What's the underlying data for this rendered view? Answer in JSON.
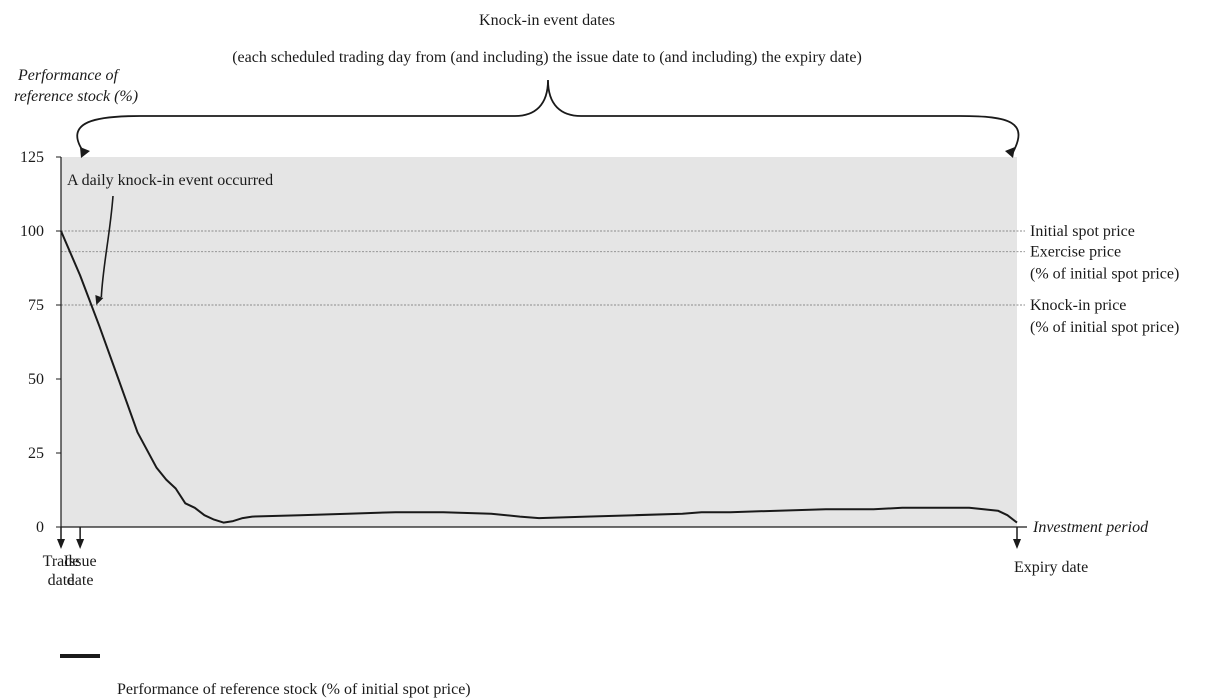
{
  "header": {
    "title": "Knock-in event dates",
    "subtitle": "(each scheduled trading day from (and including) the issue date to (and including) the expiry date)"
  },
  "chart_data": {
    "type": "line",
    "ylabel_line1": "Performance of",
    "ylabel_line2": "reference stock (%)",
    "xlabel": "Investment period",
    "ylim": [
      0,
      125
    ],
    "yticks": [
      "125",
      "100",
      "75",
      "50",
      "25",
      "0"
    ],
    "ytick_values": [
      125,
      100,
      75,
      50,
      25,
      0
    ],
    "series": [
      {
        "name": "Performance of reference stock (% of initial spot price)",
        "x": [
          0,
          2,
          4,
          6,
          8,
          10,
          11,
          12,
          13,
          14,
          15,
          16,
          17,
          18,
          19,
          20,
          25,
          30,
          35,
          40,
          45,
          48,
          50,
          55,
          60,
          65,
          67,
          70,
          75,
          80,
          85,
          88,
          90,
          95,
          98,
          99,
          100
        ],
        "values": [
          100,
          85,
          68,
          50,
          32,
          20,
          16,
          13,
          8,
          6.5,
          4,
          2.5,
          1.5,
          2,
          3,
          3.5,
          4,
          4.5,
          5,
          5,
          4.5,
          3.5,
          3,
          3.5,
          4,
          4.5,
          5,
          5,
          5.5,
          6,
          6,
          6.5,
          6.5,
          6.5,
          5.5,
          4,
          1.5
        ]
      }
    ],
    "reference_lines": [
      {
        "label_line1": "Initial spot price",
        "label_line2": "",
        "value": 100
      },
      {
        "label_line1": "Exercise price",
        "label_line2": "(% of initial spot price)",
        "value": 93
      },
      {
        "label_line1": "Knock-in price",
        "label_line2": "(% of initial spot price)",
        "value": 75
      }
    ],
    "annotation": {
      "text": "A daily knock-in event occurred",
      "x": 3.8,
      "y": 75
    },
    "date_markers": [
      {
        "line1": "Trade",
        "line2": "date",
        "x": 0
      },
      {
        "line1": "Issue",
        "line2": "date",
        "x": 2
      },
      {
        "line1": "Expiry date",
        "line2": "",
        "x": 100
      }
    ],
    "shaded_region": {
      "from": 0,
      "to": 100,
      "color": "#e5e5e5"
    },
    "legend": {
      "placement": "bottom-left"
    },
    "colors": {
      "line": "#1a1a1a",
      "shade": "#e5e5e5",
      "reference": "#8a8a8a"
    }
  }
}
